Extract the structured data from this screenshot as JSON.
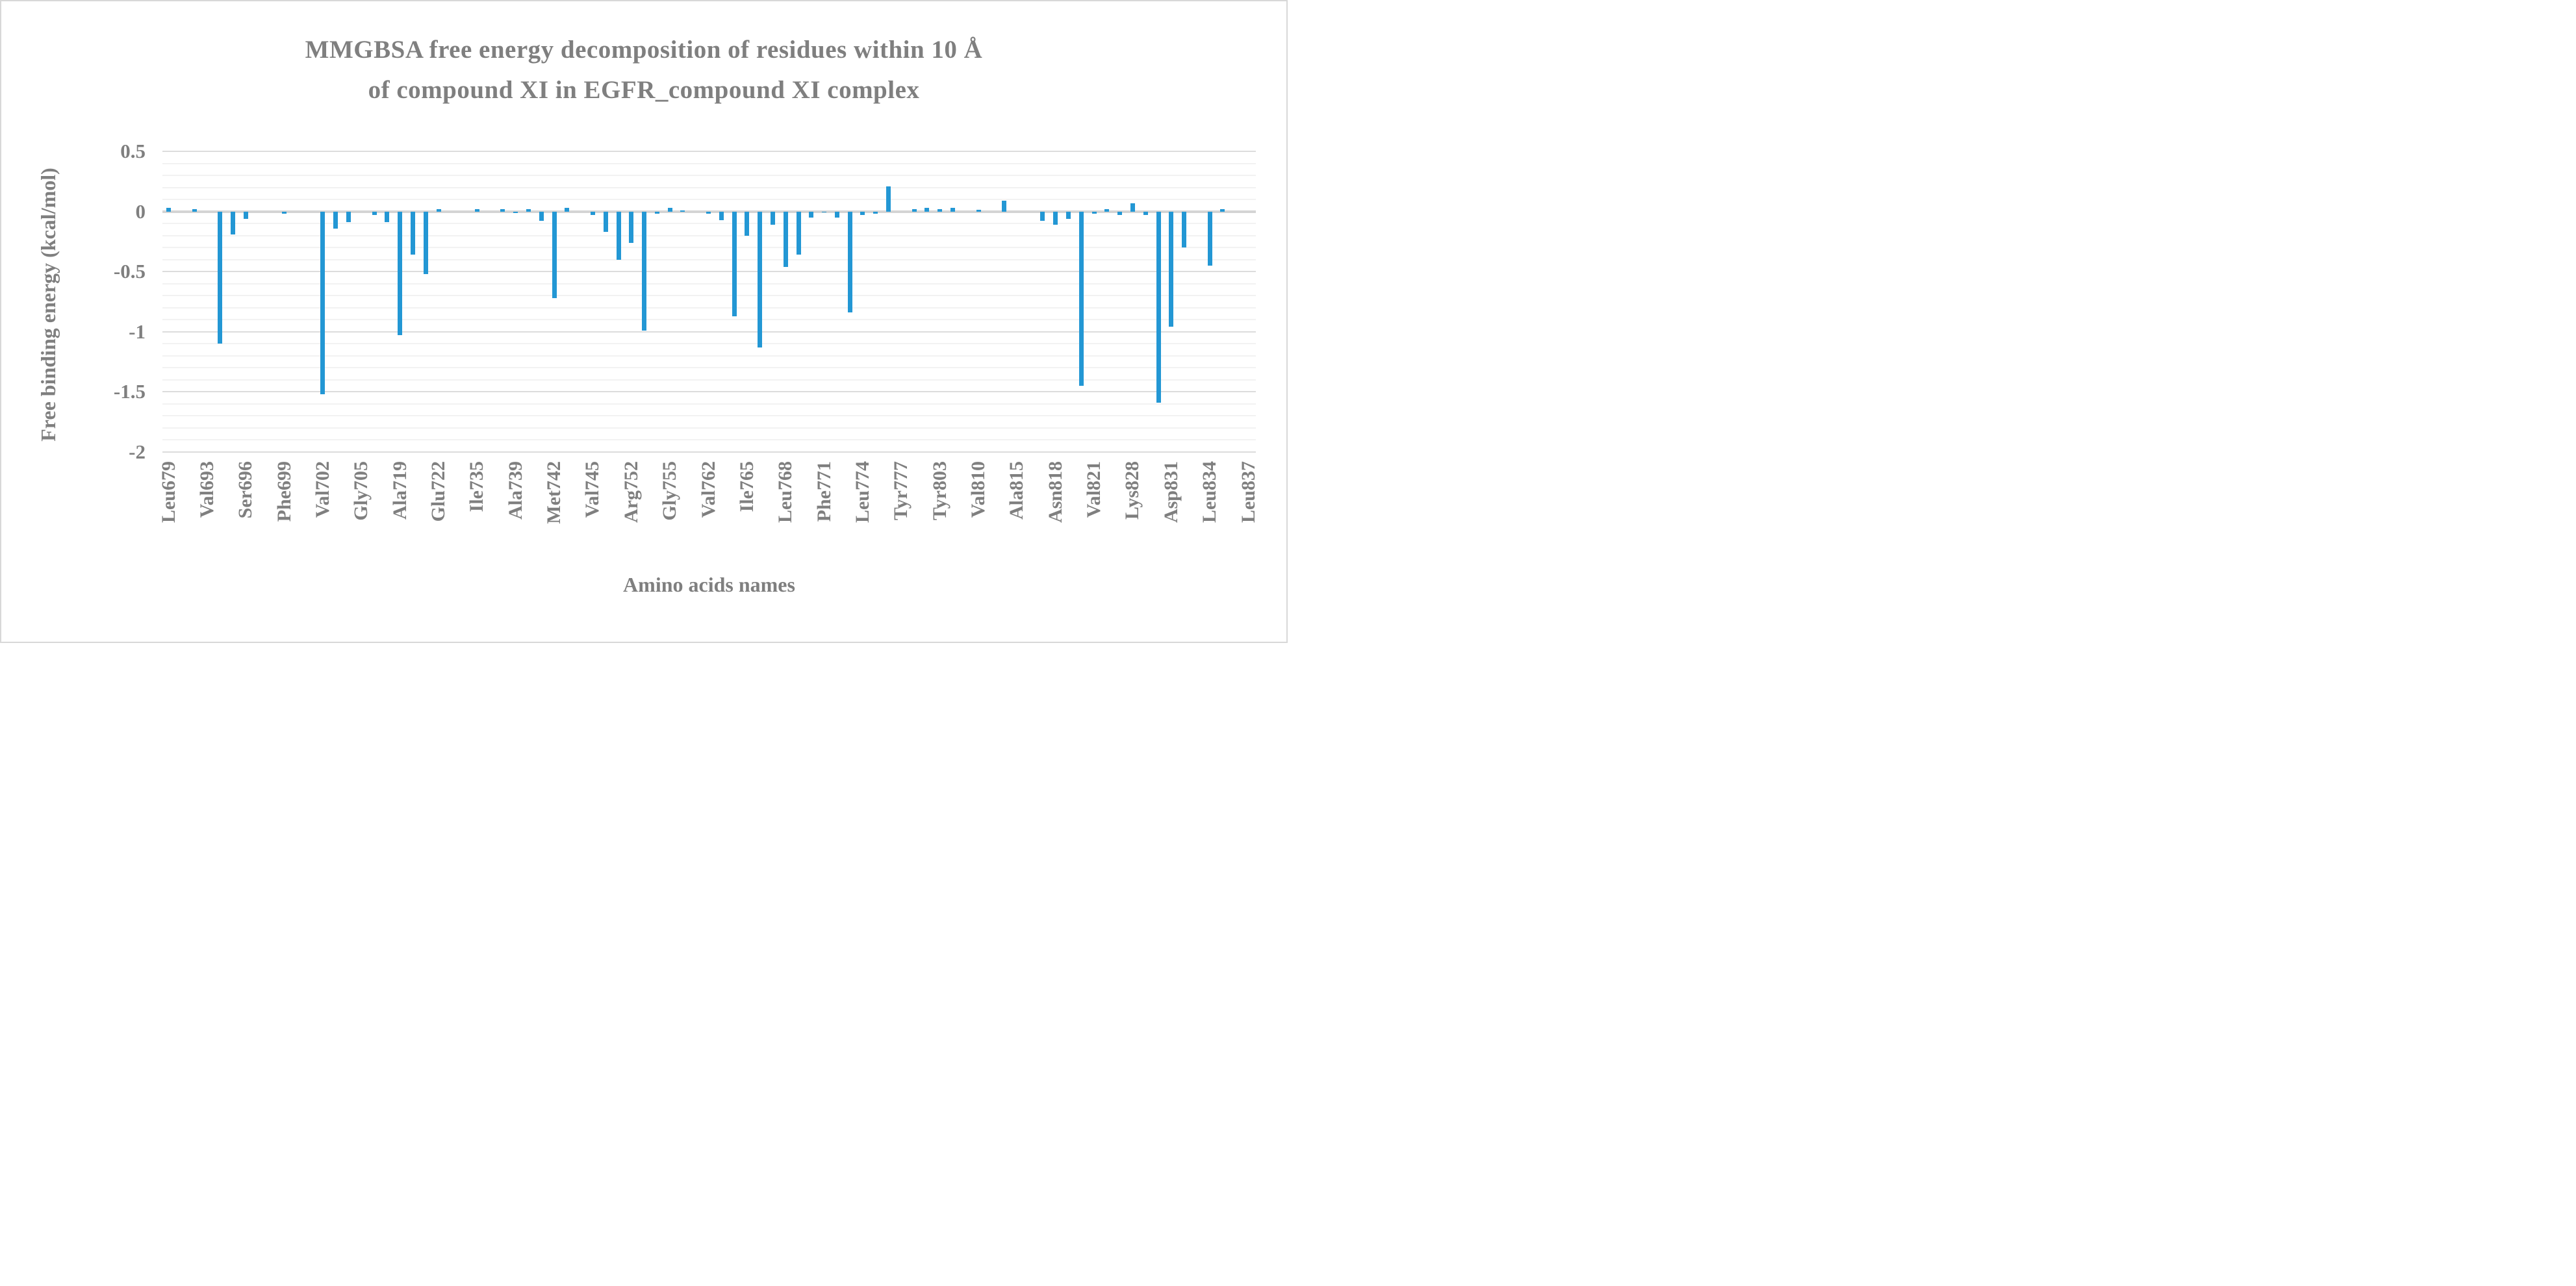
{
  "chart": {
    "title_line1": "MMGBSA free energy decomposition of residues within 10 Å",
    "title_line2": "of compound XI in EGFR_compound XI complex",
    "colors": {
      "bar": "#2397d4",
      "text": "#7f7f7f",
      "major_grid": "#dcdcdc",
      "minor_grid": "#f2f2f2",
      "zero_line": "#d4d4d4",
      "border": "#d8d8d8",
      "background": "#ffffff"
    }
  },
  "chart_data": {
    "type": "bar",
    "title": "MMGBSA free energy decomposition of residues within 10 Å of compound XI in EGFR_compound XI complex",
    "xlabel": "Amino acids names",
    "ylabel": "Free binding energy (kcal/mol)",
    "ylim": [
      -2,
      0.5
    ],
    "y_major_ticks": [
      0.5,
      0,
      -0.5,
      -1,
      -1.5,
      -2
    ],
    "y_tick_labels": [
      "0.5",
      "0",
      "-0.5",
      "-1",
      "-1.5",
      "-2"
    ],
    "y_minor_step": 0.1,
    "grid": true,
    "legend": false,
    "bar_color": "#2397d4",
    "tick_interval": 3,
    "tick_labels": [
      "Leu679",
      "Val693",
      "Ser696",
      "Phe699",
      "Val702",
      "Gly705",
      "Ala719",
      "Glu722",
      "Ile735",
      "Ala739",
      "Met742",
      "Val745",
      "Arg752",
      "Gly755",
      "Val762",
      "Ile765",
      "Leu768",
      "Phe771",
      "Leu774",
      "Tyr777",
      "Tyr803",
      "Val810",
      "Ala815",
      "Asn818",
      "Val821",
      "Lys828",
      "Asp831",
      "Leu834",
      "Leu837"
    ],
    "values": [
      0.03,
      0,
      0.02,
      0,
      -1.1,
      -0.19,
      -0.06,
      0,
      0,
      -0.02,
      0,
      0,
      -1.52,
      -0.14,
      -0.09,
      0,
      -0.03,
      -0.09,
      -1.03,
      -0.36,
      -0.52,
      0.02,
      0,
      0,
      0.02,
      0,
      0.02,
      -0.015,
      0.02,
      -0.08,
      -0.72,
      0.03,
      0,
      -0.03,
      -0.17,
      -0.4,
      -0.26,
      -0.99,
      -0.02,
      0.03,
      0.01,
      0,
      -0.02,
      -0.07,
      -0.87,
      -0.2,
      -1.13,
      -0.11,
      -0.46,
      -0.36,
      -0.05,
      -0.01,
      -0.05,
      -0.84,
      -0.03,
      -0.02,
      0.21,
      0,
      0.02,
      0.03,
      0.02,
      0.03,
      0,
      0.015,
      0,
      0.09,
      0,
      0,
      -0.08,
      -0.11,
      -0.06,
      -1.45,
      -0.02,
      0.02,
      -0.03,
      0.07,
      -0.03,
      -1.59,
      -0.96,
      -0.3,
      0,
      -0.45,
      0.02,
      0,
      0
    ]
  }
}
